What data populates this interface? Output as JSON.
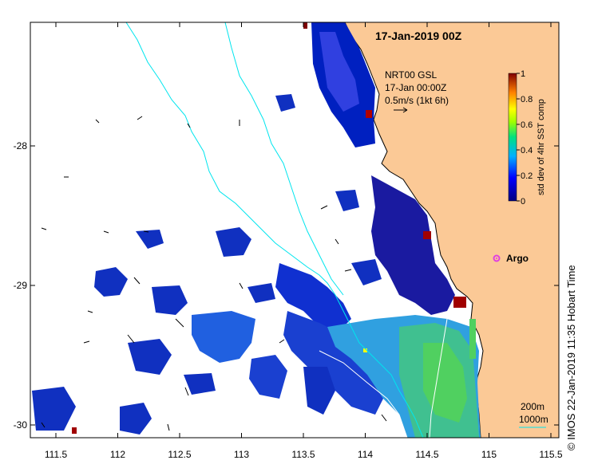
{
  "title": "17-Jan-2019 00Z",
  "annotation": {
    "line1": "NRT00 GSL",
    "line2": "17-Jan 00:00Z",
    "line3": "0.5m/s (1kt 6h)"
  },
  "colorbar": {
    "label": "std dev of 4hr SST comp",
    "ticks": [
      "0",
      "0.2",
      "0.4",
      "0.6",
      "0.8",
      "1"
    ]
  },
  "x_ticks": [
    "111.5",
    "112",
    "112.5",
    "113",
    "113.5",
    "114",
    "114.5",
    "115",
    "115.5"
  ],
  "y_ticks": [
    "-28",
    "-29",
    "-30"
  ],
  "argo_label": "Argo",
  "scale_legend": {
    "line1": "200m",
    "line2": "1000m"
  },
  "credit": "© IMOS 22-Jan-2019 11:35 Hobart Time",
  "colors": {
    "land": "#fbc996",
    "isobath_200m": "#00e5ee",
    "isobath_1000m": "#ffffff",
    "argo": "#e040e0"
  }
}
